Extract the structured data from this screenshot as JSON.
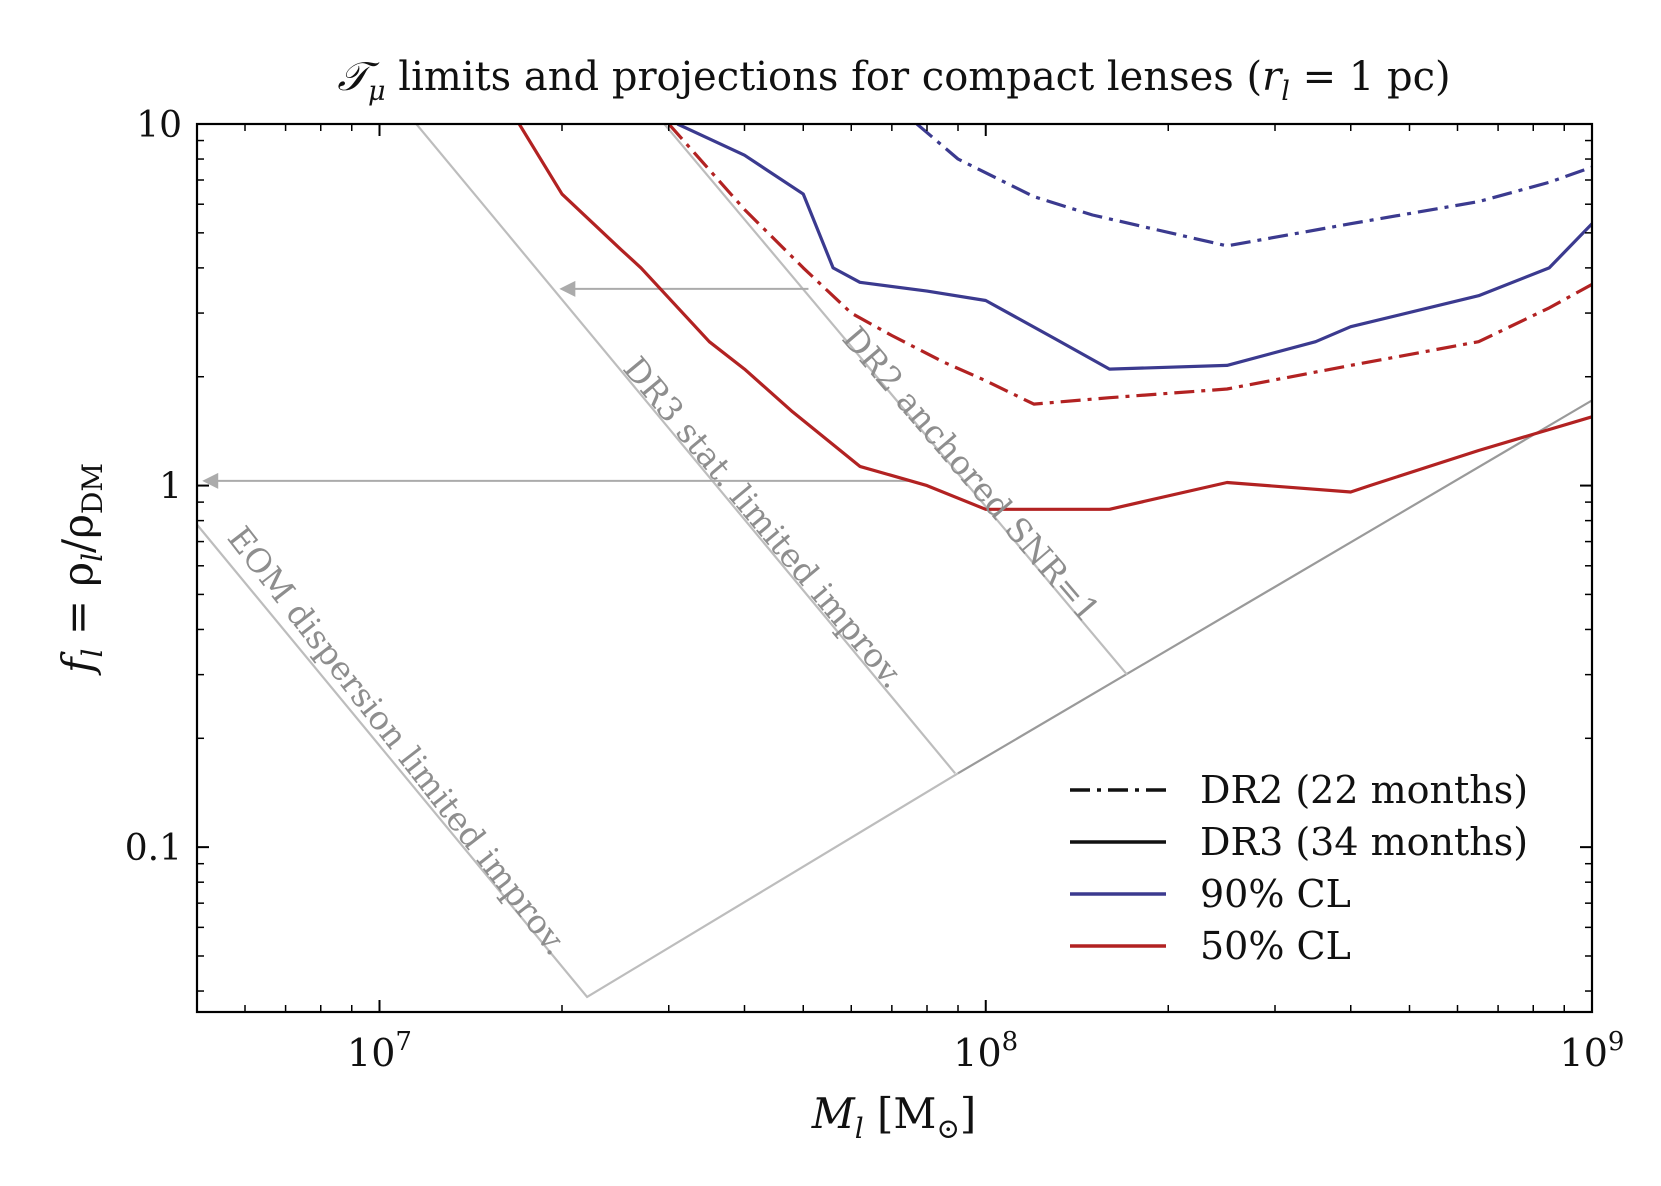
{
  "chart_data": {
    "type": "line",
    "title": {
      "prefix": "𝒯",
      "sub": "μ",
      "text": " limits and projections for compact lenses (",
      "r_main": "r",
      "r_sub": "l",
      "suffix": " = 1 pc)"
    },
    "xlabel": {
      "main": "M",
      "sub": "l",
      "rest": " [M",
      "sun": "⊙",
      "close": "]"
    },
    "ylabel": {
      "f": "f",
      "f_sub": "l",
      "eq": " = ρ",
      "rho_sub": "l",
      "slash": "/ρ",
      "dm_sub": "DM"
    },
    "xscale": "log",
    "yscale": "log",
    "xlim": [
      5000000,
      1000000000
    ],
    "ylim": [
      0.035,
      10
    ],
    "xticks": [
      {
        "value": 10000000,
        "base": "10",
        "exp": "7"
      },
      {
        "value": 100000000,
        "base": "10",
        "exp": "8"
      },
      {
        "value": 1000000000,
        "base": "10",
        "exp": "9"
      }
    ],
    "yticks": [
      {
        "value": 0.1,
        "label": "0.1"
      },
      {
        "value": 1,
        "label": "1"
      },
      {
        "value": 10,
        "label": "10"
      }
    ],
    "colors": {
      "dr90": "#3b3a8f",
      "dr50": "#b22222",
      "guide": "#bdbdbd",
      "guide_dark": "#9a9a9a",
      "arrow": "#ababab"
    },
    "series": [
      {
        "name": "DR2 90% CL",
        "style": "dashdot",
        "color": "#3b3a8f",
        "points": [
          [
            77000000,
            10
          ],
          [
            90000000,
            8
          ],
          [
            120000000,
            6.3
          ],
          [
            150000000,
            5.6
          ],
          [
            250000000,
            4.6
          ],
          [
            400000000,
            5.3
          ],
          [
            650000000,
            6.1
          ],
          [
            850000000,
            6.9
          ],
          [
            1000000000,
            7.6
          ]
        ]
      },
      {
        "name": "DR2 50% CL",
        "style": "dashdot",
        "color": "#b22222",
        "points": [
          [
            30000000,
            10
          ],
          [
            40000000,
            5.8
          ],
          [
            50000000,
            4.0
          ],
          [
            60000000,
            3.0
          ],
          [
            70000000,
            2.6
          ],
          [
            85000000,
            2.2
          ],
          [
            100000000,
            1.95
          ],
          [
            120000000,
            1.68
          ],
          [
            160000000,
            1.75
          ],
          [
            250000000,
            1.85
          ],
          [
            400000000,
            2.15
          ],
          [
            650000000,
            2.5
          ],
          [
            850000000,
            3.1
          ],
          [
            1000000000,
            3.6
          ]
        ]
      },
      {
        "name": "DR3 90% CL",
        "style": "solid",
        "color": "#3b3a8f",
        "points": [
          [
            31000000,
            10
          ],
          [
            40000000,
            8.2
          ],
          [
            50000000,
            6.4
          ],
          [
            56000000,
            4.0
          ],
          [
            62000000,
            3.65
          ],
          [
            80000000,
            3.45
          ],
          [
            100000000,
            3.25
          ],
          [
            130000000,
            2.55
          ],
          [
            160000000,
            2.1
          ],
          [
            250000000,
            2.15
          ],
          [
            350000000,
            2.5
          ],
          [
            400000000,
            2.75
          ],
          [
            650000000,
            3.35
          ],
          [
            850000000,
            4.0
          ],
          [
            1000000000,
            5.3
          ]
        ]
      },
      {
        "name": "DR3 50% CL",
        "style": "solid",
        "color": "#b22222",
        "points": [
          [
            17000000,
            10
          ],
          [
            20000000,
            6.4
          ],
          [
            25000000,
            4.5
          ],
          [
            27000000,
            4.0
          ],
          [
            35000000,
            2.5
          ],
          [
            40000000,
            2.1
          ],
          [
            48000000,
            1.6
          ],
          [
            62000000,
            1.13
          ],
          [
            80000000,
            1.0
          ],
          [
            100000000,
            0.86
          ],
          [
            160000000,
            0.86
          ],
          [
            250000000,
            1.02
          ],
          [
            400000000,
            0.96
          ],
          [
            430000000,
            1.0
          ],
          [
            650000000,
            1.25
          ],
          [
            1000000000,
            1.55
          ]
        ]
      }
    ],
    "guides": {
      "envelope": [
        [
          5000000,
          0.78
        ],
        [
          22000000,
          0.0385
        ],
        [
          1000000000,
          1.72
        ]
      ],
      "eom_line": [
        [
          5000000,
          0.78
        ],
        [
          22000000,
          0.0385
        ]
      ],
      "dr3_line": [
        [
          11500000,
          10
        ],
        [
          89000000,
          0.16
        ]
      ],
      "dr2_line": [
        [
          29500000,
          10
        ],
        [
          171000000,
          0.3
        ]
      ],
      "arrow_dr2": {
        "from": [
          51000000,
          3.5
        ],
        "to": [
          19800000,
          3.5
        ]
      },
      "arrow_eom": {
        "from": [
          75000000,
          1.03
        ],
        "to": [
          5100000,
          1.03
        ]
      }
    },
    "annotations": [
      {
        "id": "dr2",
        "text": "DR2 anchored SNR=1"
      },
      {
        "id": "dr3",
        "text": "DR3 stat. limited improv."
      },
      {
        "id": "eom",
        "text": "EOM dispersion limited improv."
      }
    ],
    "legend": {
      "position": "lower right",
      "entries": [
        {
          "label": "DR2 (22 months)",
          "style": "dashdot",
          "color": "#111111"
        },
        {
          "label": "DR3 (34 months)",
          "style": "solid",
          "color": "#111111"
        },
        {
          "label": "90% CL",
          "style": "solid",
          "color": "#3b3a8f"
        },
        {
          "label": "50% CL",
          "style": "solid",
          "color": "#b22222"
        }
      ]
    }
  }
}
